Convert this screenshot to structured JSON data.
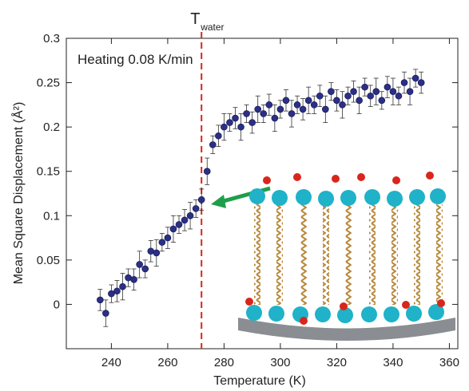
{
  "chart_data": {
    "type": "scatter",
    "title": "Heating 0.08 K/min",
    "x_label": "Temperature (K)",
    "y_label": "Mean Square Displacement (Å²)",
    "annotation": {
      "text": "T",
      "subscript": "water"
    },
    "vline": 272,
    "color": "#2b2f86",
    "x": [
      236,
      238,
      240,
      242,
      244,
      246,
      248,
      250,
      252,
      254,
      256,
      258,
      260,
      262,
      264,
      266,
      268,
      270,
      272,
      274,
      276,
      278,
      280,
      282,
      284,
      286,
      288,
      290,
      292,
      294,
      296,
      298,
      300,
      302,
      304,
      306,
      308,
      310,
      312,
      314,
      316,
      318,
      320,
      322,
      324,
      326,
      328,
      330,
      332,
      334,
      336,
      338,
      340,
      342,
      344,
      346,
      348,
      350
    ],
    "values": [
      0.005,
      -0.01,
      0.012,
      0.015,
      0.02,
      0.03,
      0.028,
      0.045,
      0.04,
      0.06,
      0.058,
      0.07,
      0.075,
      0.085,
      0.09,
      0.095,
      0.1,
      0.108,
      0.118,
      0.15,
      0.18,
      0.19,
      0.2,
      0.205,
      0.21,
      0.2,
      0.215,
      0.205,
      0.22,
      0.215,
      0.225,
      0.21,
      0.22,
      0.23,
      0.215,
      0.225,
      0.22,
      0.23,
      0.225,
      0.235,
      0.22,
      0.24,
      0.23,
      0.225,
      0.235,
      0.24,
      0.23,
      0.245,
      0.235,
      0.24,
      0.23,
      0.245,
      0.24,
      0.235,
      0.25,
      0.24,
      0.255,
      0.25
    ],
    "errors": [
      0.012,
      0.015,
      0.01,
      0.012,
      0.015,
      0.01,
      0.012,
      0.015,
      0.01,
      0.012,
      0.015,
      0.01,
      0.012,
      0.015,
      0.01,
      0.012,
      0.015,
      0.01,
      0.012,
      0.015,
      0.01,
      0.012,
      0.015,
      0.01,
      0.012,
      0.015,
      0.01,
      0.012,
      0.015,
      0.01,
      0.012,
      0.015,
      0.01,
      0.012,
      0.015,
      0.01,
      0.012,
      0.015,
      0.01,
      0.012,
      0.015,
      0.01,
      0.012,
      0.015,
      0.01,
      0.012,
      0.015,
      0.01,
      0.012,
      0.015,
      0.01,
      0.012,
      0.015,
      0.01,
      0.012,
      0.015,
      0.01,
      0.012
    ],
    "xlim": [
      224,
      363
    ],
    "ylim": [
      -0.05,
      0.3
    ],
    "xticks": [
      240,
      260,
      280,
      300,
      320,
      340,
      360
    ],
    "yticks": [
      0,
      0.05,
      0.1,
      0.15,
      0.2,
      0.25,
      0.3
    ]
  }
}
